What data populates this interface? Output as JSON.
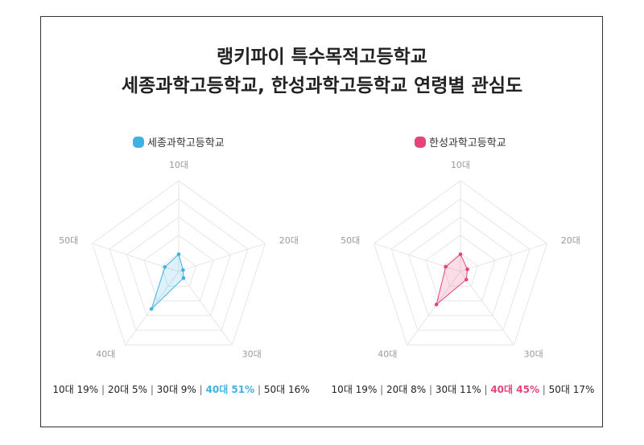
{
  "chart_data": {
    "type": "radar",
    "title_lines": [
      "랭키파이 특수목적고등학교",
      "세종과학고등학교, 한성과학고등학교 연령별 관심도"
    ],
    "categories": [
      "10대",
      "20대",
      "30대",
      "40대",
      "50대"
    ],
    "rlim": [
      0,
      100
    ],
    "rings": 5,
    "charts": [
      {
        "name": "세종과학고등학교",
        "color": "#3fb2e4",
        "values": [
          19,
          5,
          9,
          51,
          16
        ],
        "highlight_index": 3,
        "caption": [
          "10대 19%",
          "20대 5%",
          "30대 9%",
          "40대 51%",
          "50대 16%"
        ]
      },
      {
        "name": "한성과학고등학교",
        "color": "#e6427c",
        "values": [
          19,
          8,
          11,
          45,
          17
        ],
        "highlight_index": 3,
        "caption": [
          "10대 19%",
          "20대 8%",
          "30대 11%",
          "40대 45%",
          "50대 17%"
        ]
      }
    ]
  }
}
